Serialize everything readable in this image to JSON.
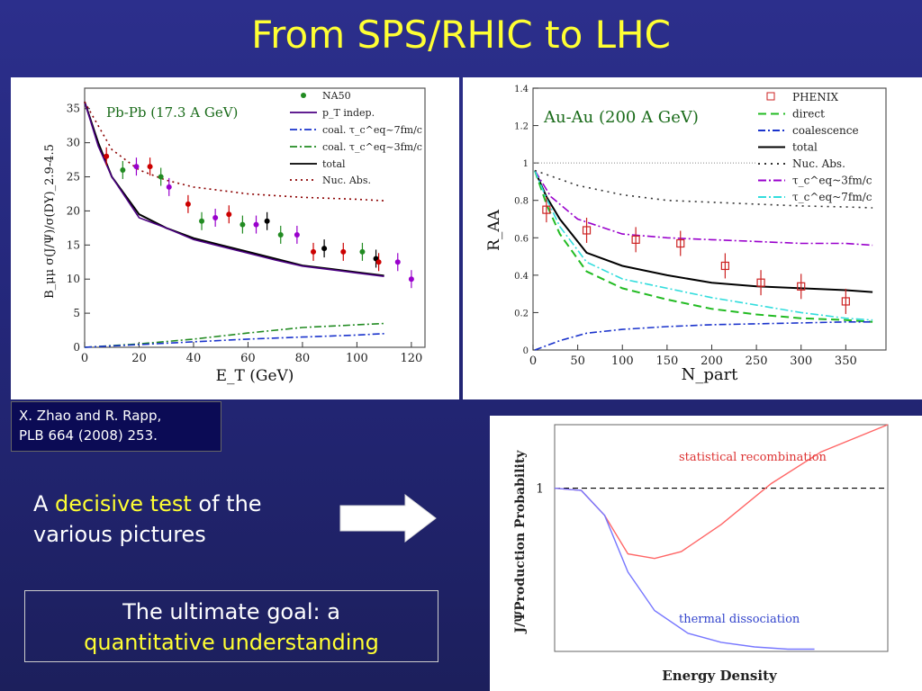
{
  "slide": {
    "title": "From SPS/RHIC to LHC",
    "citation_line1": "X. Zhao and R. Rapp,",
    "citation_line2": "PLB 664 (2008) 253.",
    "claim_prefix": "A ",
    "claim_highlight": "decisive test",
    "claim_suffix": " of the various pictures",
    "goal_line1": "The ultimate goal: a",
    "goal_line2": "quantitative understanding",
    "colors": {
      "title": "#ffff33",
      "background": "#2c2f8c",
      "highlight": "#ffff33"
    }
  },
  "chart_data": [
    {
      "type": "line",
      "panel_title": "Pb-Pb (17.3 A GeV)",
      "xlabel": "E_T (GeV)",
      "ylabel": "B_μμ σ(J/Ψ)/σ(DY)_2.9-4.5",
      "xlim": [
        0,
        125
      ],
      "ylim": [
        0,
        38
      ],
      "xticks": [
        "0",
        "20",
        "40",
        "60",
        "80",
        "100",
        "120"
      ],
      "yticks": [
        "0",
        "5",
        "10",
        "15",
        "20",
        "25",
        "30",
        "35"
      ],
      "legend": [
        "NA50",
        "p_T indep.",
        "coal. τ_c^eq~7fm/c",
        "coal. τ_c^eq~3fm/c",
        "total",
        "Nuc. Abs."
      ],
      "series": [
        {
          "name": "total",
          "color": "#000000",
          "x": [
            0,
            5,
            10,
            20,
            30,
            40,
            50,
            60,
            70,
            80,
            90,
            100,
            110
          ],
          "y": [
            36,
            30,
            25,
            19.5,
            17.5,
            16,
            15,
            14,
            13,
            12,
            11.5,
            11,
            10.5
          ]
        },
        {
          "name": "p_T indep.",
          "color": "#4b0082",
          "x": [
            0,
            5,
            10,
            20,
            30,
            40,
            50,
            60,
            70,
            80,
            90,
            100,
            110
          ],
          "y": [
            36,
            29.5,
            25,
            19,
            17.5,
            15.8,
            14.8,
            13.8,
            12.8,
            11.9,
            11.4,
            10.9,
            10.4
          ]
        },
        {
          "name": "Nuc. Abs.",
          "color": "#8b0000",
          "x": [
            0,
            10,
            20,
            30,
            40,
            60,
            80,
            100,
            110
          ],
          "y": [
            36,
            29,
            26,
            24.5,
            23.5,
            22.5,
            22,
            21.7,
            21.5
          ]
        },
        {
          "name": "coal. τ_c^eq~3fm/c",
          "color": "#228b22",
          "x": [
            0,
            20,
            40,
            60,
            80,
            100,
            110
          ],
          "y": [
            0,
            0.5,
            1.2,
            2.1,
            2.9,
            3.3,
            3.5
          ]
        },
        {
          "name": "coal. τ_c^eq~7fm/c",
          "color": "#1a33cc",
          "x": [
            0,
            20,
            40,
            60,
            80,
            100,
            110
          ],
          "y": [
            0,
            0.4,
            0.8,
            1.2,
            1.5,
            1.8,
            2
          ]
        }
      ],
      "points": [
        {
          "x": 8,
          "y": 28,
          "c": "#cc0000"
        },
        {
          "x": 14,
          "y": 26,
          "c": "#228b22"
        },
        {
          "x": 19,
          "y": 26.5,
          "c": "#9900cc"
        },
        {
          "x": 24,
          "y": 26.5,
          "c": "#cc0000"
        },
        {
          "x": 28,
          "y": 25,
          "c": "#228b22"
        },
        {
          "x": 31,
          "y": 23.5,
          "c": "#9900cc"
        },
        {
          "x": 38,
          "y": 21,
          "c": "#cc0000"
        },
        {
          "x": 43,
          "y": 18.5,
          "c": "#228b22"
        },
        {
          "x": 48,
          "y": 19,
          "c": "#9900cc"
        },
        {
          "x": 53,
          "y": 19.5,
          "c": "#cc0000"
        },
        {
          "x": 58,
          "y": 18,
          "c": "#228b22"
        },
        {
          "x": 63,
          "y": 18,
          "c": "#9900cc"
        },
        {
          "x": 67,
          "y": 18.5,
          "c": "#000000"
        },
        {
          "x": 72,
          "y": 16.5,
          "c": "#228b22"
        },
        {
          "x": 78,
          "y": 16.5,
          "c": "#9900cc"
        },
        {
          "x": 84,
          "y": 14,
          "c": "#cc0000"
        },
        {
          "x": 88,
          "y": 14.5,
          "c": "#000000"
        },
        {
          "x": 95,
          "y": 14,
          "c": "#cc0000"
        },
        {
          "x": 102,
          "y": 14,
          "c": "#228b22"
        },
        {
          "x": 107,
          "y": 13,
          "c": "#000000"
        },
        {
          "x": 108,
          "y": 12.5,
          "c": "#cc0000"
        },
        {
          "x": 115,
          "y": 12.5,
          "c": "#9900cc"
        },
        {
          "x": 120,
          "y": 10,
          "c": "#9900cc"
        }
      ]
    },
    {
      "type": "line",
      "panel_title": "Au-Au (200 A GeV)",
      "xlabel": "N_part",
      "ylabel": "R_AA",
      "xlim": [
        0,
        395
      ],
      "ylim": [
        0,
        1.4
      ],
      "xticks": [
        "0",
        "50",
        "100",
        "150",
        "200",
        "250",
        "300",
        "350"
      ],
      "yticks": [
        "0",
        "0.2",
        "0.4",
        "0.6",
        "0.8",
        "1",
        "1.2",
        "1.4"
      ],
      "legend": [
        "PHENIX",
        "direct",
        "coalescence",
        "total",
        "Nuc. Abs.",
        "τ_c^eq~3fm/c",
        "τ_c^eq~7fm/c"
      ],
      "series": [
        {
          "name": "total",
          "color": "#000000",
          "x": [
            2,
            15,
            30,
            60,
            100,
            150,
            200,
            250,
            300,
            350,
            380
          ],
          "y": [
            0.96,
            0.82,
            0.7,
            0.52,
            0.45,
            0.4,
            0.36,
            0.34,
            0.33,
            0.32,
            0.31
          ]
        },
        {
          "name": "direct",
          "color": "#22bb22",
          "x": [
            2,
            15,
            30,
            60,
            100,
            150,
            200,
            250,
            300,
            350,
            380
          ],
          "y": [
            0.96,
            0.78,
            0.62,
            0.42,
            0.33,
            0.27,
            0.22,
            0.19,
            0.17,
            0.16,
            0.15
          ]
        },
        {
          "name": "τ_c^eq~3fm/c",
          "color": "#9900cc",
          "x": [
            2,
            20,
            50,
            100,
            150,
            200,
            250,
            300,
            350,
            380
          ],
          "y": [
            0.96,
            0.82,
            0.7,
            0.62,
            0.6,
            0.59,
            0.58,
            0.57,
            0.57,
            0.56
          ]
        },
        {
          "name": "τ_c^eq~7fm/c",
          "color": "#33dddd",
          "x": [
            2,
            15,
            30,
            60,
            100,
            150,
            200,
            250,
            300,
            350,
            380
          ],
          "y": [
            0.96,
            0.81,
            0.66,
            0.47,
            0.38,
            0.33,
            0.28,
            0.24,
            0.2,
            0.17,
            0.16
          ]
        },
        {
          "name": "Nuc. Abs.",
          "color": "#333333",
          "x": [
            2,
            50,
            100,
            150,
            200,
            250,
            300,
            350,
            380
          ],
          "y": [
            0.96,
            0.88,
            0.83,
            0.8,
            0.79,
            0.78,
            0.77,
            0.765,
            0.76
          ]
        },
        {
          "name": "coalescence",
          "color": "#1a33cc",
          "x": [
            2,
            30,
            60,
            100,
            150,
            200,
            250,
            300,
            350,
            380
          ],
          "y": [
            0,
            0.05,
            0.09,
            0.11,
            0.125,
            0.135,
            0.14,
            0.145,
            0.15,
            0.15
          ]
        }
      ],
      "points": [
        {
          "x": 15,
          "y": 0.75
        },
        {
          "x": 60,
          "y": 0.64
        },
        {
          "x": 115,
          "y": 0.59
        },
        {
          "x": 165,
          "y": 0.57
        },
        {
          "x": 215,
          "y": 0.45
        },
        {
          "x": 255,
          "y": 0.36
        },
        {
          "x": 300,
          "y": 0.34
        },
        {
          "x": 350,
          "y": 0.26
        }
      ]
    },
    {
      "type": "line",
      "xlabel": "Energy Density",
      "ylabel": "J/ΨProduction Probability",
      "ytick": "1",
      "annotations": [
        "statistical recombination",
        "thermal dissociation"
      ],
      "series": [
        {
          "name": "statistical recombination",
          "color": "#ff6666",
          "x": [
            0,
            0.08,
            0.15,
            0.22,
            0.3,
            0.38,
            0.5,
            0.65,
            0.8,
            1.0
          ],
          "y": [
            0.72,
            0.71,
            0.6,
            0.43,
            0.41,
            0.44,
            0.56,
            0.74,
            0.88,
            1.0
          ]
        },
        {
          "name": "thermal dissociation",
          "color": "#7777ff",
          "x": [
            0,
            0.08,
            0.15,
            0.22,
            0.3,
            0.4,
            0.5,
            0.6,
            0.7,
            0.78
          ],
          "y": [
            0.72,
            0.71,
            0.6,
            0.35,
            0.18,
            0.08,
            0.04,
            0.02,
            0.01,
            0.01
          ]
        }
      ]
    }
  ]
}
